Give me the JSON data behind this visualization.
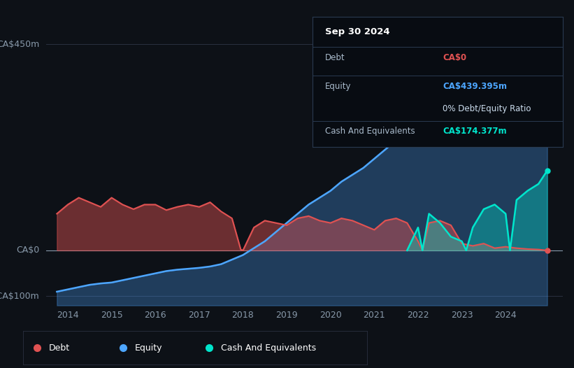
{
  "bg_color": "#0d1117",
  "plot_bg_color": "#0d1117",
  "grid_color": "#2a3040",
  "ylabel_ca450": "CA$450m",
  "ylabel_ca0": "CA$0",
  "ylabel_caneg100": "-CA$100m",
  "ylim": [
    -120,
    490
  ],
  "xlim_start": 2013.5,
  "xlim_end": 2025.3,
  "xticks": [
    2014,
    2015,
    2016,
    2017,
    2018,
    2019,
    2020,
    2021,
    2022,
    2023,
    2024
  ],
  "debt_color": "#e05252",
  "equity_color": "#4da6ff",
  "cash_color": "#00e5cc",
  "tooltip_bg": "#080b10",
  "tooltip_border": "#2a3040",
  "tooltip_title": "Sep 30 2024",
  "tooltip_debt_label": "Debt",
  "tooltip_debt_value": "CA$0",
  "tooltip_equity_label": "Equity",
  "tooltip_equity_value": "CA$439.395m",
  "tooltip_ratio": "0% Debt/Equity Ratio",
  "tooltip_cash_label": "Cash And Equivalents",
  "tooltip_cash_value": "CA$174.377m",
  "debt_x": [
    2013.75,
    2014.0,
    2014.25,
    2014.5,
    2014.75,
    2015.0,
    2015.25,
    2015.5,
    2015.75,
    2016.0,
    2016.25,
    2016.5,
    2016.75,
    2017.0,
    2017.25,
    2017.5,
    2017.75,
    2017.95,
    2018.0,
    2018.25,
    2018.5,
    2018.75,
    2019.0,
    2019.25,
    2019.5,
    2019.75,
    2020.0,
    2020.25,
    2020.5,
    2020.75,
    2021.0,
    2021.25,
    2021.5,
    2021.75,
    2022.0,
    2022.1,
    2022.25,
    2022.5,
    2022.75,
    2023.0,
    2023.25,
    2023.5,
    2023.75,
    2024.0,
    2024.25,
    2024.5,
    2024.75,
    2024.95
  ],
  "debt_y": [
    80,
    100,
    115,
    105,
    95,
    115,
    100,
    90,
    100,
    100,
    88,
    95,
    100,
    95,
    105,
    85,
    70,
    2,
    0,
    50,
    65,
    60,
    55,
    70,
    75,
    65,
    60,
    70,
    65,
    55,
    45,
    65,
    70,
    60,
    20,
    0,
    60,
    65,
    55,
    15,
    10,
    15,
    5,
    8,
    5,
    3,
    2,
    0
  ],
  "equity_x": [
    2013.75,
    2014.0,
    2014.25,
    2014.5,
    2014.75,
    2015.0,
    2015.25,
    2015.5,
    2015.75,
    2016.0,
    2016.25,
    2016.5,
    2016.75,
    2017.0,
    2017.25,
    2017.5,
    2017.75,
    2018.0,
    2018.25,
    2018.5,
    2018.75,
    2019.0,
    2019.25,
    2019.5,
    2019.75,
    2020.0,
    2020.25,
    2020.5,
    2020.75,
    2021.0,
    2021.25,
    2021.5,
    2021.75,
    2022.0,
    2022.25,
    2022.5,
    2022.75,
    2023.0,
    2023.25,
    2023.5,
    2023.75,
    2024.0,
    2024.25,
    2024.5,
    2024.75,
    2024.95
  ],
  "equity_y": [
    -90,
    -85,
    -80,
    -75,
    -72,
    -70,
    -65,
    -60,
    -55,
    -50,
    -45,
    -42,
    -40,
    -38,
    -35,
    -30,
    -20,
    -10,
    5,
    20,
    40,
    60,
    80,
    100,
    115,
    130,
    150,
    165,
    180,
    200,
    220,
    240,
    255,
    270,
    285,
    300,
    315,
    330,
    345,
    360,
    380,
    395,
    410,
    425,
    435,
    439
  ],
  "cash_x": [
    2021.75,
    2022.0,
    2022.1,
    2022.25,
    2022.5,
    2022.75,
    2023.0,
    2023.1,
    2023.25,
    2023.5,
    2023.75,
    2024.0,
    2024.1,
    2024.25,
    2024.5,
    2024.75,
    2024.95
  ],
  "cash_y": [
    0,
    50,
    0,
    80,
    60,
    30,
    20,
    0,
    50,
    90,
    100,
    80,
    0,
    110,
    130,
    145,
    174
  ],
  "legend_items": [
    {
      "label": "Debt",
      "color": "#e05252"
    },
    {
      "label": "Equity",
      "color": "#4da6ff"
    },
    {
      "label": "Cash And Equivalents",
      "color": "#00e5cc"
    }
  ]
}
